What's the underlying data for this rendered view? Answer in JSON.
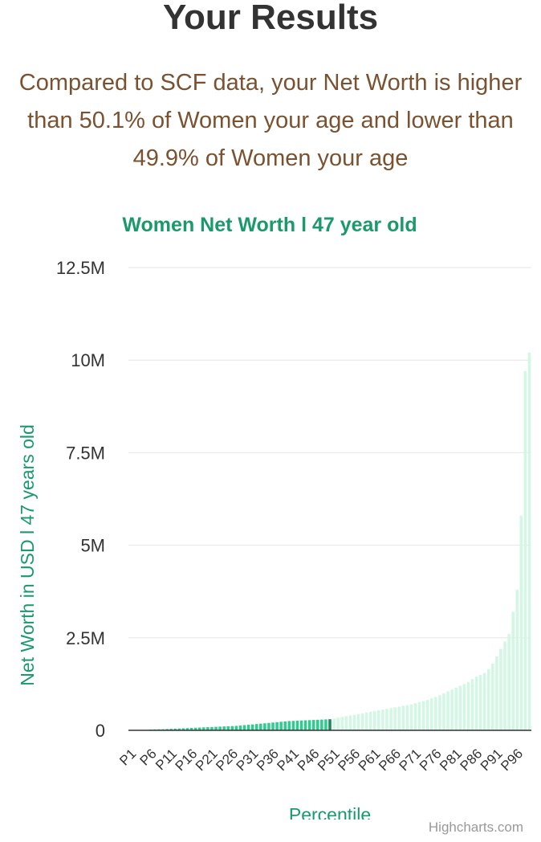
{
  "header": {
    "title": "Your Results",
    "summary": "Compared to SCF data, your Net Worth is higher than 50.1% of Women your age and lower than 49.9% of Women your age"
  },
  "colors": {
    "below": "#2ecc8f",
    "current": "#1a8a5a",
    "above": "#d2f7e4",
    "title": "#1a9a6a",
    "summary": "#7a5230"
  },
  "chart_data": {
    "type": "bar",
    "title": "Women Net Worth l 47 year old",
    "xlabel": "Percentile",
    "ylabel": "Net Worth in USD l 47 years old",
    "ylim": [
      0,
      12500000
    ],
    "yticks": [
      0,
      2500000,
      5000000,
      7500000,
      10000000,
      12500000
    ],
    "ytick_labels": [
      "0",
      "2.5M",
      "5M",
      "7.5M",
      "10M",
      "12.5M"
    ],
    "grid": true,
    "highlight_index": 49,
    "categories": [
      "P1",
      "P2",
      "P3",
      "P4",
      "P5",
      "P6",
      "P7",
      "P8",
      "P9",
      "P10",
      "P11",
      "P12",
      "P13",
      "P14",
      "P15",
      "P16",
      "P17",
      "P18",
      "P19",
      "P20",
      "P21",
      "P22",
      "P23",
      "P24",
      "P25",
      "P26",
      "P27",
      "P28",
      "P29",
      "P30",
      "P31",
      "P32",
      "P33",
      "P34",
      "P35",
      "P36",
      "P37",
      "P38",
      "P39",
      "P40",
      "P41",
      "P42",
      "P43",
      "P44",
      "P45",
      "P46",
      "P47",
      "P48",
      "P49",
      "P50",
      "P51",
      "P52",
      "P53",
      "P54",
      "P55",
      "P56",
      "P57",
      "P58",
      "P59",
      "P60",
      "P61",
      "P62",
      "P63",
      "P64",
      "P65",
      "P66",
      "P67",
      "P68",
      "P69",
      "P70",
      "P71",
      "P72",
      "P73",
      "P74",
      "P75",
      "P76",
      "P77",
      "P78",
      "P79",
      "P80",
      "P81",
      "P82",
      "P83",
      "P84",
      "P85",
      "P86",
      "P87",
      "P88",
      "P89",
      "P90",
      "P91",
      "P92",
      "P93",
      "P94",
      "P95",
      "P96",
      "P97",
      "P98",
      "P99"
    ],
    "tick_labels": [
      "P1",
      "P6",
      "P11",
      "P16",
      "P21",
      "P26",
      "P31",
      "P36",
      "P41",
      "P46",
      "P51",
      "P56",
      "P61",
      "P66",
      "P71",
      "P76",
      "P81",
      "P86",
      "P91",
      "P96"
    ],
    "values": [
      0,
      0,
      0,
      0,
      0,
      20000,
      25000,
      28000,
      30000,
      35000,
      40000,
      45000,
      50000,
      55000,
      60000,
      65000,
      70000,
      75000,
      80000,
      85000,
      90000,
      95000,
      100000,
      105000,
      110000,
      115000,
      120000,
      130000,
      140000,
      150000,
      160000,
      170000,
      180000,
      190000,
      200000,
      210000,
      220000,
      230000,
      240000,
      250000,
      255000,
      260000,
      265000,
      270000,
      275000,
      280000,
      285000,
      290000,
      295000,
      300000,
      320000,
      340000,
      360000,
      380000,
      400000,
      420000,
      440000,
      460000,
      480000,
      500000,
      520000,
      540000,
      560000,
      580000,
      600000,
      620000,
      640000,
      660000,
      680000,
      700000,
      730000,
      760000,
      790000,
      820000,
      860000,
      900000,
      950000,
      1000000,
      1050000,
      1100000,
      1150000,
      1200000,
      1250000,
      1300000,
      1380000,
      1450000,
      1500000,
      1550000,
      1650000,
      1800000,
      2000000,
      2200000,
      2400000,
      2600000,
      3200000,
      3800000,
      5800000,
      9700000,
      10200000
    ]
  }
}
